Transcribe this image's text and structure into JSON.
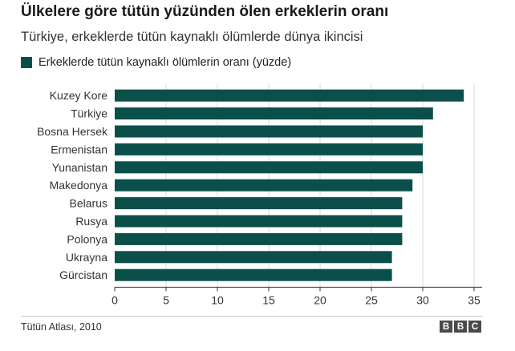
{
  "title": "Ülkelere göre tütün yüzünden ölen erkeklerin oranı",
  "subtitle": "Türkiye, erkeklerde tütün kaynaklı ölümlerde dünya ikincisi",
  "source": "Tütün Atlası, 2010",
  "logo_letters": [
    "B",
    "B",
    "C"
  ],
  "colors": {
    "bar": "#0b4f4a",
    "axis": "#333333",
    "grid": "#d9d9d9"
  },
  "chart_data": {
    "type": "bar",
    "orientation": "horizontal",
    "categories": [
      "Kuzey Kore",
      "Türkiye",
      "Bosna Hersek",
      "Ermenistan",
      "Yunanistan",
      "Makedonya",
      "Belarus",
      "Rusya",
      "Polonya",
      "Ukrayna",
      "Gürcistan"
    ],
    "series": [
      {
        "name": "Erkeklerde tütün kaynaklı ölümlerin oranı (yüzde)",
        "values": [
          34,
          31,
          30,
          30,
          30,
          29,
          28,
          28,
          28,
          27,
          27
        ]
      }
    ],
    "xlim": [
      0,
      35
    ],
    "xticks": [
      0,
      5,
      10,
      15,
      20,
      25,
      30,
      35
    ],
    "legend_position": "top-left",
    "grid": "vertical"
  }
}
